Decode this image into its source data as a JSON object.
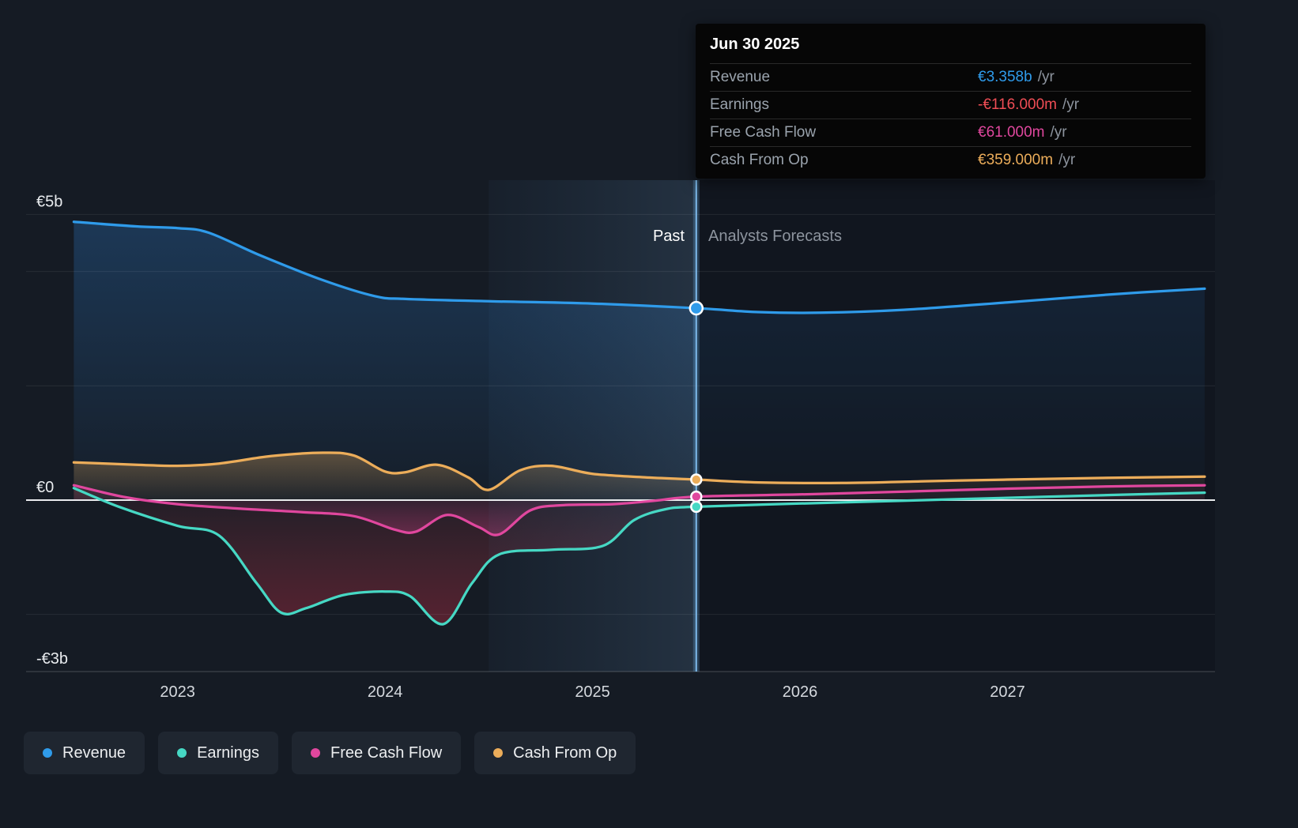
{
  "tooltip": {
    "date": "Jun 30 2025",
    "rows": [
      {
        "label": "Revenue",
        "value": "€3.358b",
        "suffix": "/yr",
        "color": "#2f9bea"
      },
      {
        "label": "Earnings",
        "value": "-€116.000m",
        "suffix": "/yr",
        "color": "#ef4d55"
      },
      {
        "label": "Free Cash Flow",
        "value": "€61.000m",
        "suffix": "/yr",
        "color": "#e0479e"
      },
      {
        "label": "Cash From Op",
        "value": "€359.000m",
        "suffix": "/yr",
        "color": "#ecad5a"
      }
    ]
  },
  "labels": {
    "past": "Past",
    "forecast": "Analysts Forecasts"
  },
  "legend": [
    {
      "label": "Revenue",
      "color": "#2f9bea"
    },
    {
      "label": "Earnings",
      "color": "#46d8c4"
    },
    {
      "label": "Free Cash Flow",
      "color": "#e0479e"
    },
    {
      "label": "Cash From Op",
      "color": "#ecad5a"
    }
  ],
  "chart_data": {
    "type": "area",
    "currency": "EUR",
    "x_axis": {
      "min": 2022.27,
      "max": 2028.0,
      "ticks": [
        {
          "value": 2023,
          "label": "2023"
        },
        {
          "value": 2024,
          "label": "2024"
        },
        {
          "value": 2025,
          "label": "2025"
        },
        {
          "value": 2026,
          "label": "2026"
        },
        {
          "value": 2027,
          "label": "2027"
        }
      ]
    },
    "y_axis": {
      "unit": "billions",
      "min": -3,
      "max": 5.57,
      "gridlines": [
        5,
        4,
        2,
        -2
      ],
      "labels": [
        {
          "value": 5,
          "label": "€5b"
        },
        {
          "value": 0,
          "label": "€0"
        },
        {
          "value": -3,
          "label": "-€3b"
        }
      ]
    },
    "divider_x": 2025.5,
    "highlight_band": [
      2024.5,
      2025.5
    ],
    "series": [
      {
        "name": "Revenue",
        "color": "#2f9bea",
        "marker_value": 3.358,
        "points": [
          [
            2022.5,
            4.87
          ],
          [
            2022.8,
            4.79
          ],
          [
            2023.0,
            4.76
          ],
          [
            2023.15,
            4.68
          ],
          [
            2023.4,
            4.28
          ],
          [
            2023.7,
            3.85
          ],
          [
            2023.95,
            3.57
          ],
          [
            2024.1,
            3.52
          ],
          [
            2024.5,
            3.48
          ],
          [
            2025.0,
            3.44
          ],
          [
            2025.5,
            3.358
          ],
          [
            2025.8,
            3.29
          ],
          [
            2026.1,
            3.28
          ],
          [
            2026.5,
            3.33
          ],
          [
            2027.0,
            3.46
          ],
          [
            2027.5,
            3.6
          ],
          [
            2027.95,
            3.7
          ]
        ]
      },
      {
        "name": "Earnings",
        "color": "#46d8c4",
        "marker_value": -0.116,
        "points": [
          [
            2022.5,
            0.21
          ],
          [
            2022.72,
            -0.12
          ],
          [
            2023.0,
            -0.45
          ],
          [
            2023.2,
            -0.62
          ],
          [
            2023.38,
            -1.45
          ],
          [
            2023.5,
            -1.97
          ],
          [
            2023.62,
            -1.89
          ],
          [
            2023.8,
            -1.66
          ],
          [
            2024.0,
            -1.6
          ],
          [
            2024.12,
            -1.68
          ],
          [
            2024.28,
            -2.17
          ],
          [
            2024.42,
            -1.45
          ],
          [
            2024.55,
            -0.95
          ],
          [
            2024.8,
            -0.87
          ],
          [
            2025.05,
            -0.8
          ],
          [
            2025.2,
            -0.35
          ],
          [
            2025.35,
            -0.16
          ],
          [
            2025.5,
            -0.116
          ],
          [
            2026.0,
            -0.06
          ],
          [
            2026.5,
            -0.01
          ],
          [
            2027.0,
            0.04
          ],
          [
            2027.5,
            0.09
          ],
          [
            2027.95,
            0.13
          ]
        ]
      },
      {
        "name": "Free Cash Flow",
        "color": "#e0479e",
        "marker_value": 0.061,
        "points": [
          [
            2022.5,
            0.26
          ],
          [
            2022.75,
            0.05
          ],
          [
            2023.0,
            -0.07
          ],
          [
            2023.3,
            -0.15
          ],
          [
            2023.6,
            -0.21
          ],
          [
            2023.85,
            -0.28
          ],
          [
            2024.05,
            -0.52
          ],
          [
            2024.15,
            -0.55
          ],
          [
            2024.3,
            -0.26
          ],
          [
            2024.45,
            -0.47
          ],
          [
            2024.55,
            -0.6
          ],
          [
            2024.7,
            -0.18
          ],
          [
            2024.85,
            -0.09
          ],
          [
            2025.1,
            -0.07
          ],
          [
            2025.3,
            -0.01
          ],
          [
            2025.5,
            0.061
          ],
          [
            2026.0,
            0.1
          ],
          [
            2026.5,
            0.15
          ],
          [
            2027.0,
            0.2
          ],
          [
            2027.5,
            0.24
          ],
          [
            2027.95,
            0.26
          ]
        ]
      },
      {
        "name": "Cash From Op",
        "color": "#ecad5a",
        "marker_value": 0.359,
        "points": [
          [
            2022.5,
            0.66
          ],
          [
            2022.8,
            0.62
          ],
          [
            2023.0,
            0.6
          ],
          [
            2023.2,
            0.64
          ],
          [
            2023.45,
            0.77
          ],
          [
            2023.7,
            0.83
          ],
          [
            2023.85,
            0.78
          ],
          [
            2024.0,
            0.5
          ],
          [
            2024.1,
            0.49
          ],
          [
            2024.25,
            0.62
          ],
          [
            2024.4,
            0.4
          ],
          [
            2024.5,
            0.18
          ],
          [
            2024.65,
            0.52
          ],
          [
            2024.8,
            0.6
          ],
          [
            2025.0,
            0.46
          ],
          [
            2025.25,
            0.4
          ],
          [
            2025.5,
            0.359
          ],
          [
            2025.8,
            0.31
          ],
          [
            2026.2,
            0.3
          ],
          [
            2026.6,
            0.33
          ],
          [
            2027.0,
            0.36
          ],
          [
            2027.5,
            0.39
          ],
          [
            2027.95,
            0.41
          ]
        ]
      }
    ]
  }
}
